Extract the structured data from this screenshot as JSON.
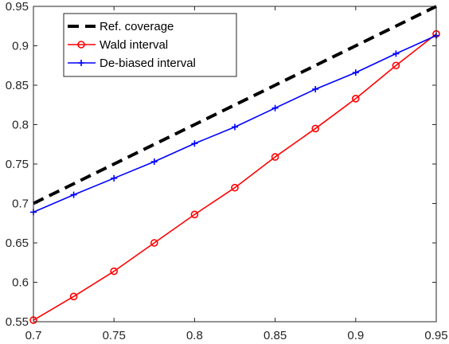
{
  "chart_data": {
    "type": "line",
    "title": "",
    "xlabel": "",
    "ylabel": "",
    "xlim": [
      0.7,
      0.95
    ],
    "ylim": [
      0.55,
      0.95
    ],
    "x_ticks": [
      "0.7",
      "0.75",
      "0.8",
      "0.85",
      "0.9",
      "0.95"
    ],
    "y_ticks": [
      "0.55",
      "0.6",
      "0.65",
      "0.7",
      "0.75",
      "0.8",
      "0.85",
      "0.9",
      "0.95"
    ],
    "grid": false,
    "legend_position": "top-left",
    "x": [
      0.7,
      0.725,
      0.75,
      0.775,
      0.8,
      0.825,
      0.85,
      0.875,
      0.9,
      0.925,
      0.95
    ],
    "series": [
      {
        "name": "Ref. coverage",
        "color": "#000000",
        "style": "dashed",
        "marker": "none",
        "values": [
          0.7,
          0.725,
          0.75,
          0.775,
          0.8,
          0.825,
          0.85,
          0.875,
          0.9,
          0.925,
          0.95
        ]
      },
      {
        "name": "Wald interval",
        "color": "#ff0000",
        "style": "solid",
        "marker": "circle",
        "values": [
          0.552,
          0.582,
          0.614,
          0.65,
          0.686,
          0.72,
          0.759,
          0.795,
          0.833,
          0.875,
          0.915
        ]
      },
      {
        "name": "De-biased interval",
        "color": "#0000ff",
        "style": "solid",
        "marker": "plus",
        "values": [
          0.689,
          0.711,
          0.732,
          0.753,
          0.776,
          0.797,
          0.821,
          0.845,
          0.866,
          0.89,
          0.913
        ]
      }
    ]
  }
}
